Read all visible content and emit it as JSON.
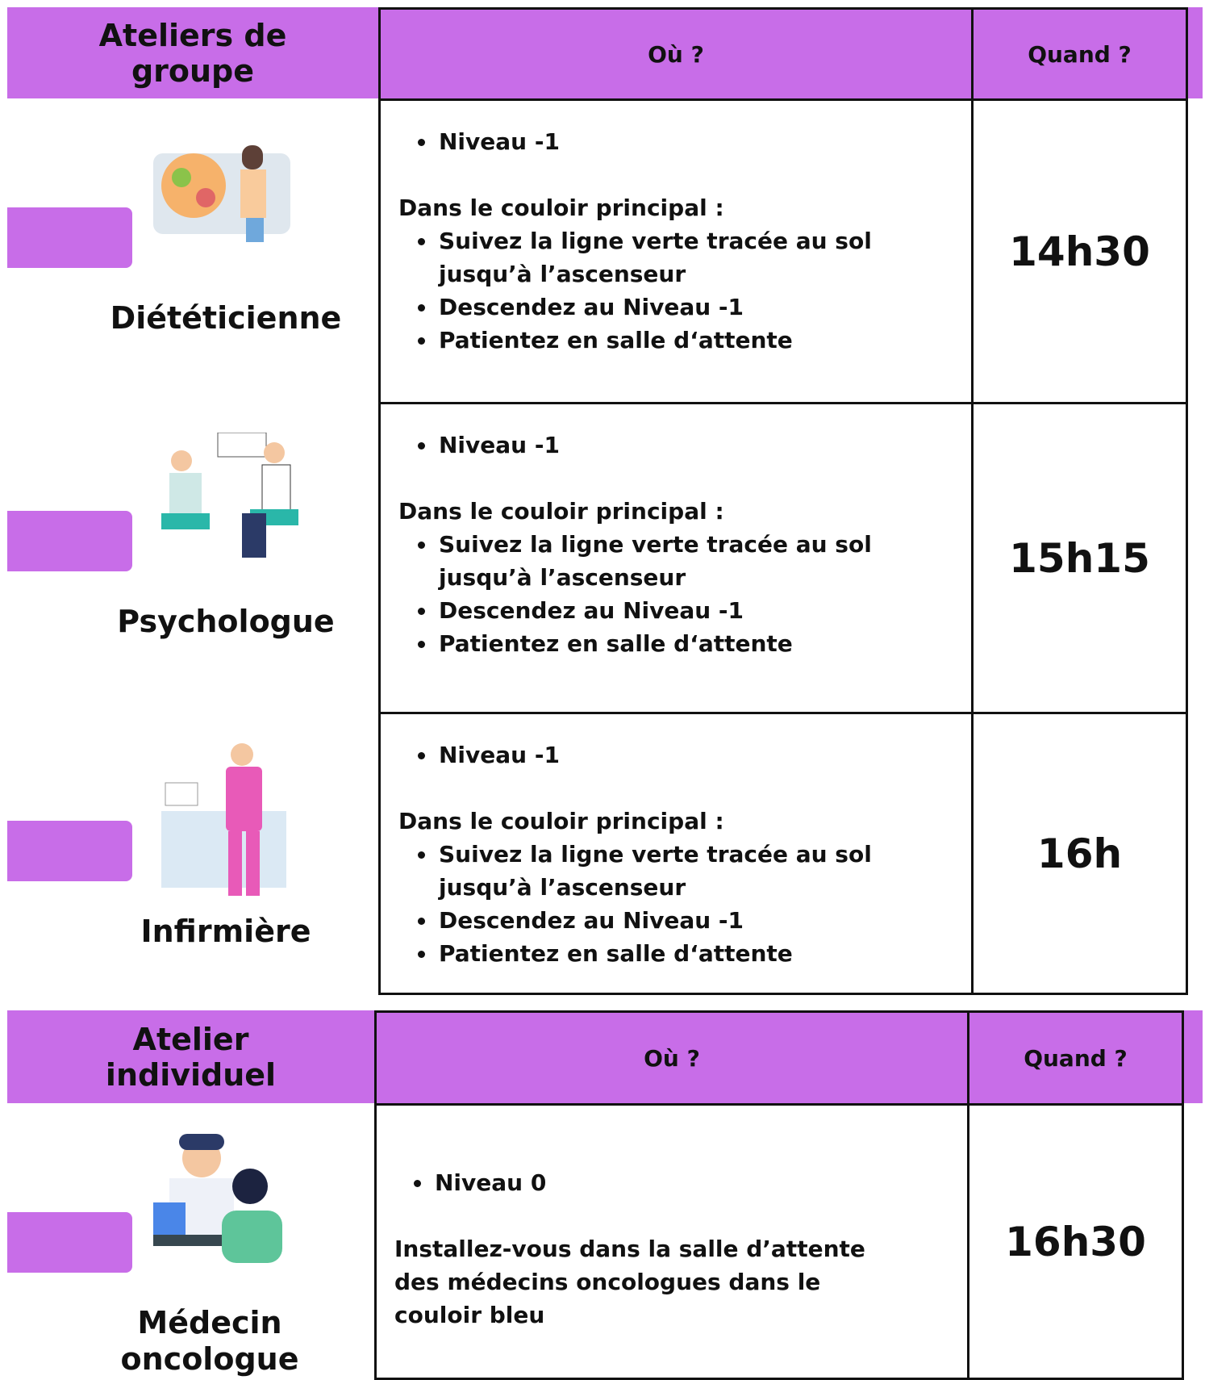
{
  "sections": [
    {
      "title": "Ateliers de groupe",
      "where_header": "Où ?",
      "when_header": "Quand ?",
      "rows": [
        {
          "name": "Diététicienne",
          "level": "Niveau -1",
          "intro": "Dans le couloir principal :",
          "steps": [
            "Suivez la ligne verte tracée au sol jusqu’à l’ascenseur",
            "Descendez au Niveau -1",
            "Patientez en salle d‘attente"
          ],
          "time": "14h30"
        },
        {
          "name": "Psychologue",
          "level": "Niveau -1",
          "intro": "Dans le couloir principal :",
          "steps": [
            "Suivez la ligne verte tracée au sol jusqu’à l’ascenseur",
            "Descendez au Niveau -1",
            "Patientez en salle d‘attente"
          ],
          "time": "15h15"
        },
        {
          "name": "Infirmière",
          "level": "Niveau -1",
          "intro": "Dans le couloir principal :",
          "steps": [
            "Suivez la ligne verte tracée au sol jusqu’à l’ascenseur",
            "Descendez au Niveau -1",
            "Patientez en salle d‘attente"
          ],
          "time": "16h"
        }
      ]
    },
    {
      "title": "Atelier individuel",
      "where_header": "Où ?",
      "when_header": "Quand ?",
      "rows": [
        {
          "name": "Médecin oncologue",
          "level": "Niveau 0",
          "text": "Installez-vous dans la salle d’attente des médecins oncologues dans le couloir bleu",
          "time": "16h30"
        }
      ]
    }
  ]
}
